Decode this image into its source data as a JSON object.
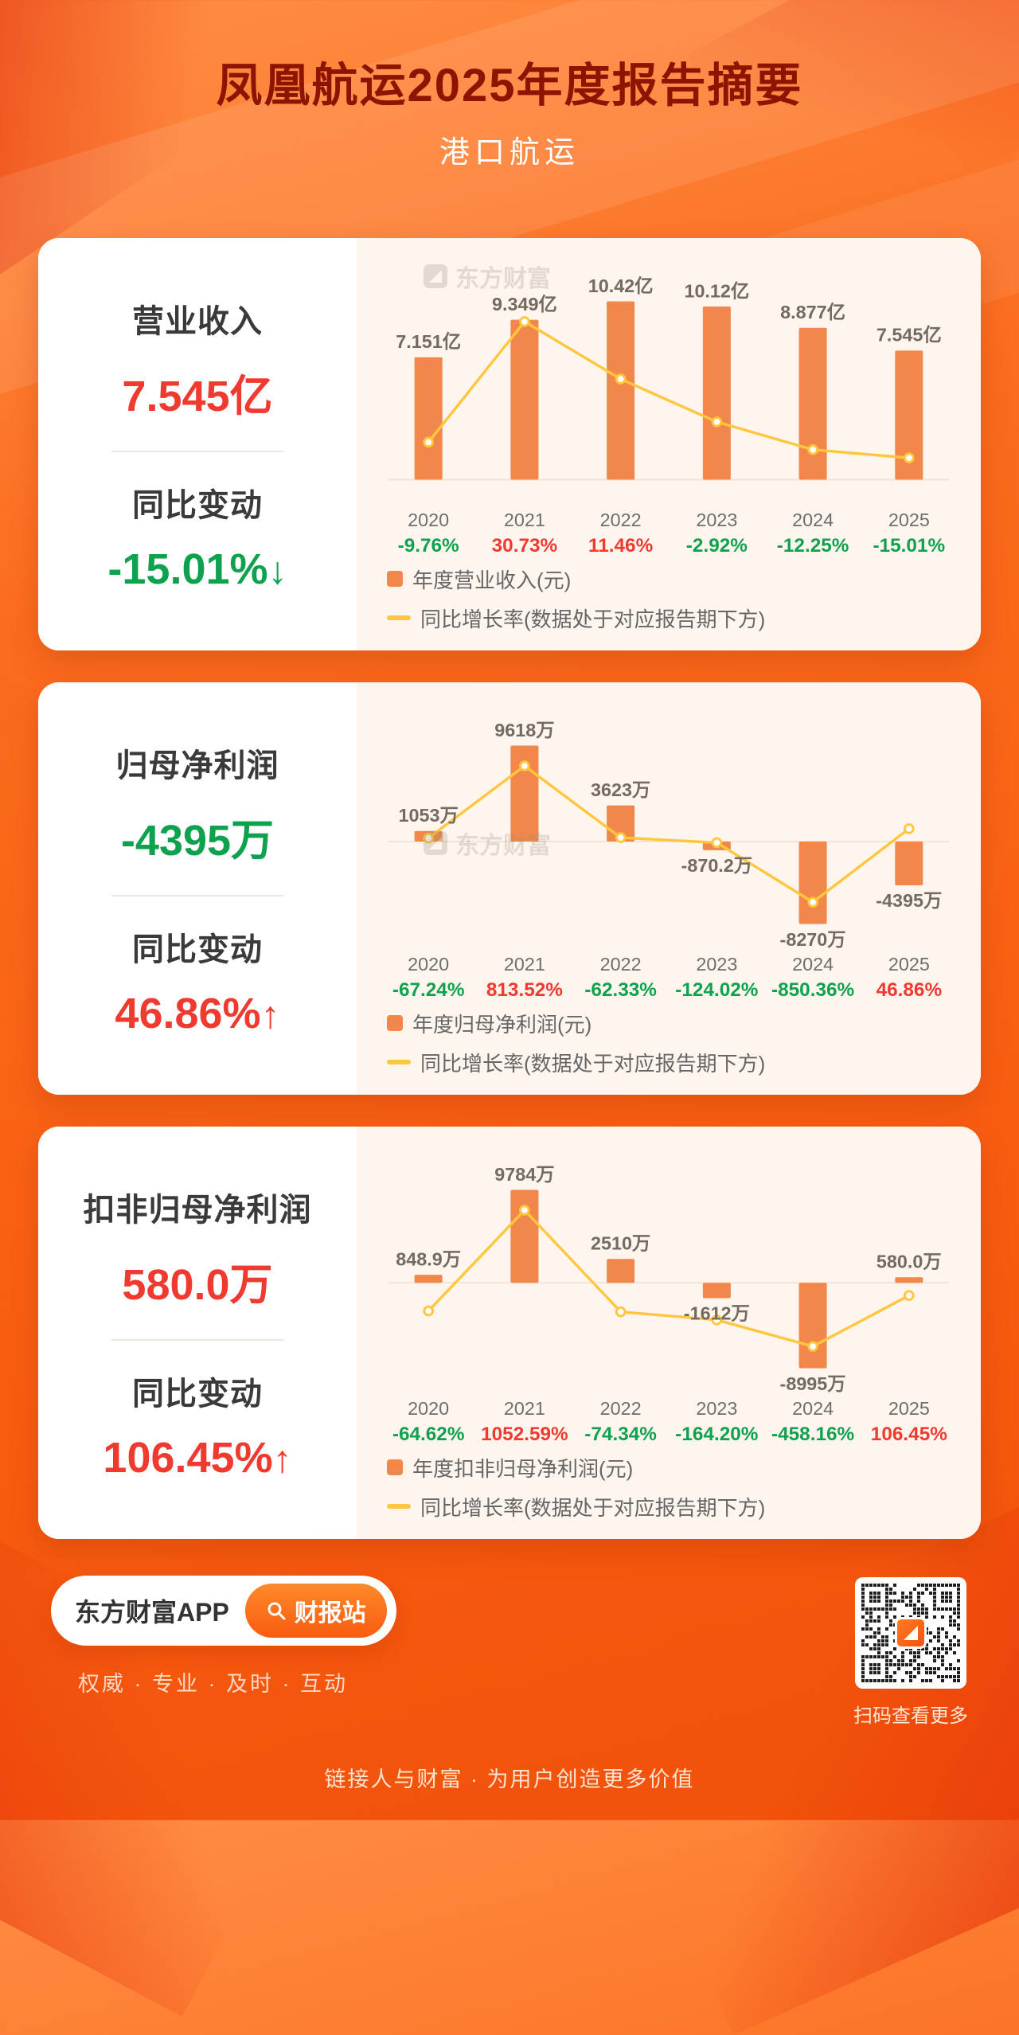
{
  "header": {
    "title": "凤凰航运2025年度报告摘要",
    "subtitle": "港口航运"
  },
  "watermark": {
    "text": "东方财富"
  },
  "cards": [
    {
      "metric_label": "营业收入",
      "metric_value": "7.545亿",
      "change_label": "同比变动",
      "change_value": "-15.01%",
      "change_arrow": "↓"
    },
    {
      "metric_label": "归母净利润",
      "metric_value": "-4395万",
      "change_label": "同比变动",
      "change_value": "46.86%",
      "change_arrow": "↑"
    },
    {
      "metric_label": "扣非归母净利润",
      "metric_value": "580.0万",
      "change_label": "同比变动",
      "change_value": "106.45%",
      "change_arrow": "↑"
    }
  ],
  "chart_data": [
    {
      "type": "bar",
      "title": "营业收入",
      "categories": [
        "2020",
        "2021",
        "2022",
        "2023",
        "2024",
        "2025"
      ],
      "bar_series": {
        "name": "年度营业收入(元)",
        "unit": "亿",
        "values": [
          7.151,
          9.349,
          10.42,
          10.12,
          8.877,
          7.545
        ],
        "labels": [
          "7.151亿",
          "9.349亿",
          "10.42亿",
          "10.12亿",
          "8.877亿",
          "7.545亿"
        ]
      },
      "line_series": {
        "name": "同比增长率(数据处于对应报告期下方)",
        "unit": "%",
        "values": [
          -9.76,
          30.73,
          11.46,
          -2.92,
          -12.25,
          -15.01
        ],
        "labels": [
          "-9.76%",
          "30.73%",
          "11.46%",
          "-2.92%",
          "-12.25%",
          "-15.01%"
        ]
      },
      "legend_position": "bottom-left",
      "grid": false
    },
    {
      "type": "bar",
      "title": "归母净利润",
      "categories": [
        "2020",
        "2021",
        "2022",
        "2023",
        "2024",
        "2025"
      ],
      "bar_series": {
        "name": "年度归母净利润(元)",
        "unit": "万",
        "values": [
          1053,
          9618,
          3623,
          -870.2,
          -8270,
          -4395
        ],
        "labels": [
          "1053万",
          "9618万",
          "3623万",
          "-870.2万",
          "-8270万",
          "-4395万"
        ]
      },
      "line_series": {
        "name": "同比增长率(数据处于对应报告期下方)",
        "unit": "%",
        "values": [
          -67.24,
          813.52,
          -62.33,
          -124.02,
          -850.36,
          46.86
        ],
        "labels": [
          "-67.24%",
          "813.52%",
          "-62.33%",
          "-124.02%",
          "-850.36%",
          "46.86%"
        ]
      },
      "legend_position": "bottom-left",
      "grid": false
    },
    {
      "type": "bar",
      "title": "扣非归母净利润",
      "categories": [
        "2020",
        "2021",
        "2022",
        "2023",
        "2024",
        "2025"
      ],
      "bar_series": {
        "name": "年度扣非归母净利润(元)",
        "unit": "万",
        "values": [
          848.9,
          9784,
          2510,
          -1612,
          -8995,
          580.0
        ],
        "labels": [
          "848.9万",
          "9784万",
          "2510万",
          "-1612万",
          "-8995万",
          "580.0万"
        ]
      },
      "line_series": {
        "name": "同比增长率(数据处于对应报告期下方)",
        "unit": "%",
        "values": [
          -64.62,
          1052.59,
          -74.34,
          -164.2,
          -458.16,
          106.45
        ],
        "labels": [
          "-64.62%",
          "1052.59%",
          "-74.34%",
          "-164.20%",
          "-458.16%",
          "106.45%"
        ]
      },
      "legend_position": "bottom-left",
      "grid": false
    }
  ],
  "colors": {
    "bar": "#F2874B",
    "line": "#FFC63E",
    "positive": "#F0392F",
    "negative": "#0EA24E",
    "axis": "#F2E3D3",
    "bar_label": "#736A60",
    "year_label": "#6E6E6E",
    "title": "#8D1400",
    "chart_panel": "#FEF6EE"
  },
  "footer": {
    "app_name": "东方财富APP",
    "app_button": "财报站",
    "tagline": "权威 · 专业 · 及时 · 互动",
    "qr_caption": "扫码查看更多",
    "bottom_text": "链接人与财富 · 为用户创造更多价值"
  }
}
